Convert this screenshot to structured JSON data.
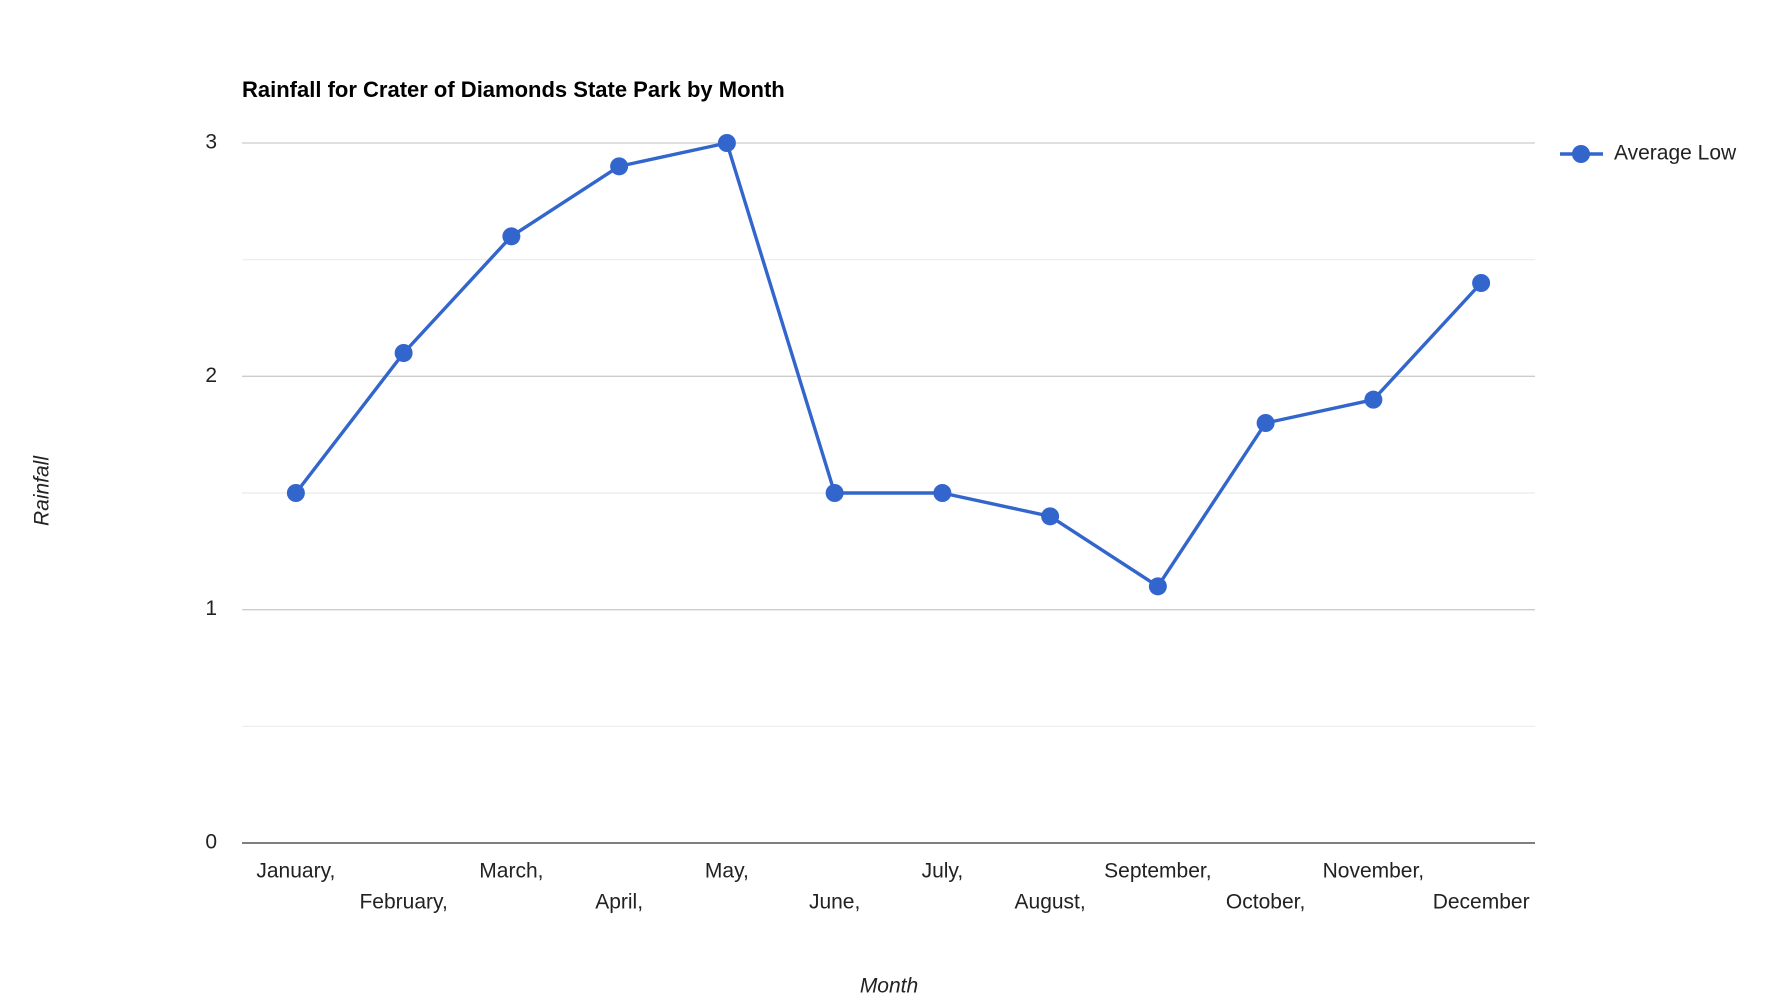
{
  "chart_data": {
    "type": "line",
    "title": "Rainfall for Crater of Diamonds State Park by Month",
    "x_label": "Month",
    "y_label": "Rainfall",
    "categories": [
      "January,",
      "February,",
      "March,",
      "April,",
      "May,",
      "June,",
      "July,",
      "August,",
      "September,",
      "October,",
      "November,",
      "December"
    ],
    "series": [
      {
        "name": "Average Low",
        "color": "#3366cc",
        "values": [
          1.5,
          2.1,
          2.6,
          2.9,
          3.0,
          1.5,
          1.5,
          1.4,
          1.1,
          1.8,
          1.9,
          2.4
        ]
      }
    ],
    "ylim": [
      0,
      3
    ],
    "yticks": [
      0,
      1,
      2,
      3
    ],
    "grid": true,
    "minor_grid": true,
    "legend": "right"
  }
}
